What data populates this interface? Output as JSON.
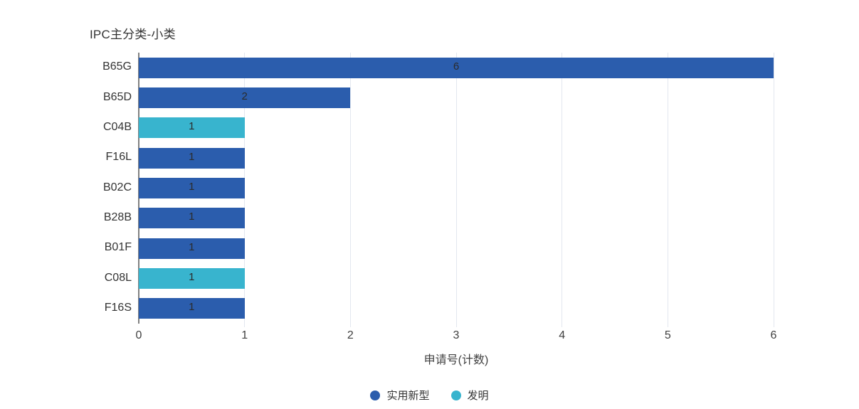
{
  "chart_data": {
    "type": "bar",
    "orientation": "horizontal",
    "title": "IPC主分类-小类",
    "xlabel": "申请号(计数)",
    "categories": [
      "B65G",
      "B65D",
      "C04B",
      "F16L",
      "B02C",
      "B28B",
      "B01F",
      "C08L",
      "F16S"
    ],
    "values": [
      6,
      2,
      1,
      1,
      1,
      1,
      1,
      1,
      1
    ],
    "bar_series": [
      "实用新型",
      "实用新型",
      "发明",
      "实用新型",
      "实用新型",
      "实用新型",
      "实用新型",
      "发明",
      "实用新型"
    ],
    "series_colors": {
      "实用新型": "#2B5DAD",
      "发明": "#38B4CE"
    },
    "xlim": [
      0,
      6
    ],
    "xticks": [
      0,
      1,
      2,
      3,
      4,
      5,
      6
    ],
    "grid": true,
    "data_labels": true,
    "legend_position": "bottom",
    "legend": {
      "items": [
        {
          "label": "实用新型",
          "color": "#2B5DAD"
        },
        {
          "label": "发明",
          "color": "#38B4CE"
        }
      ]
    }
  },
  "colors": {
    "background": "#ffffff",
    "title_text": "#333333",
    "axis_text": "#404040",
    "category_text": "#333333",
    "data_label_text": "#2b2b2b",
    "gridline": "#e2e7ef",
    "axis_line": "#808080"
  }
}
